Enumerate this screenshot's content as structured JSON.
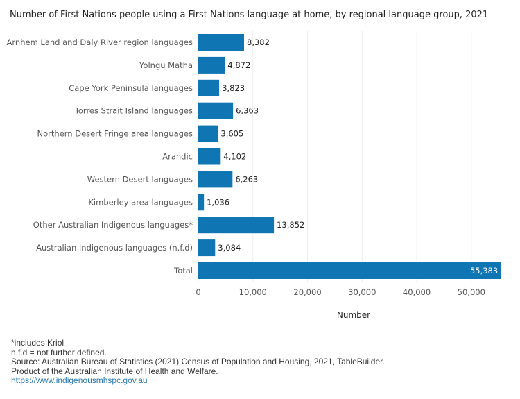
{
  "chart_data": {
    "type": "bar",
    "orientation": "horizontal",
    "title": "Number of First Nations people using a First Nations language at home, by regional language group, 2021",
    "categories": [
      "Arnhem Land and Daly River region languages",
      "Yolngu Matha",
      "Cape York Peninsula languages",
      "Torres Strait Island languages",
      "Northern Desert Fringe area languages",
      "Arandic",
      "Western Desert languages",
      "Kimberley area languages",
      "Other Australian Indigenous languages*",
      "Australian Indigenous languages (n.f.d)",
      "Total"
    ],
    "values": [
      8382,
      4872,
      3823,
      6363,
      3605,
      4102,
      6263,
      1036,
      13852,
      3084,
      55383
    ],
    "value_labels": [
      "8,382",
      "4,872",
      "3,823",
      "6,363",
      "3,605",
      "4,102",
      "6,263",
      "1,036",
      "13,852",
      "3,084",
      "55,383"
    ],
    "xlabel": "Number",
    "ylabel": "",
    "xlim": [
      0,
      57500
    ],
    "ticks": [
      0,
      10000,
      20000,
      30000,
      40000,
      50000
    ],
    "tick_labels": [
      "0",
      "10,000",
      "20,000",
      "30,000",
      "40,000",
      "50,000"
    ],
    "bar_color": "#0f75b3",
    "grid": true
  },
  "notes": {
    "footnote": "*includes Kriol",
    "abbreviation": "n.f.d = not further defined.",
    "source": "Source: Australian Bureau of Statistics (2021) Census of Population and Housing, 2021, TableBuilder.",
    "product": "Product of the Australian Institute of Health and Welfare.",
    "link": "https://www.indigenousmhspc.gov.au"
  }
}
